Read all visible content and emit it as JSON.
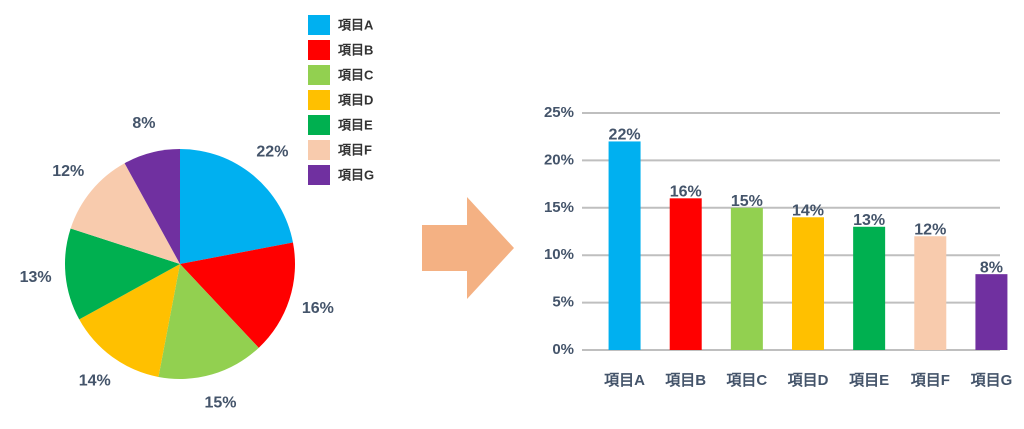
{
  "chart_data": [
    {
      "type": "pie",
      "categories": [
        "項目A",
        "項目B",
        "項目C",
        "項目D",
        "項目E",
        "項目F",
        "項目G"
      ],
      "values": [
        22,
        16,
        15,
        14,
        13,
        12,
        8
      ],
      "value_labels": [
        "22%",
        "16%",
        "15%",
        "14%",
        "13%",
        "12%",
        "8%"
      ],
      "colors": [
        "#00b0f0",
        "#ff0000",
        "#92d050",
        "#ffc000",
        "#00b050",
        "#f8cbad",
        "#7030a0"
      ],
      "legend": "top-right"
    },
    {
      "type": "bar",
      "categories": [
        "項目A",
        "項目B",
        "項目C",
        "項目D",
        "項目E",
        "項目F",
        "項目G"
      ],
      "values": [
        22,
        16,
        15,
        14,
        13,
        12,
        8
      ],
      "value_labels": [
        "22%",
        "16%",
        "15%",
        "14%",
        "13%",
        "12%",
        "8%"
      ],
      "colors": [
        "#00b0f0",
        "#ff0000",
        "#92d050",
        "#ffc000",
        "#00b050",
        "#f8cbad",
        "#7030a0"
      ],
      "ylim": [
        0,
        25
      ],
      "yticks": [
        {
          "value": 0,
          "label": "0%"
        },
        {
          "value": 5,
          "label": "5%"
        },
        {
          "value": 10,
          "label": "10%"
        },
        {
          "value": 15,
          "label": "15%"
        },
        {
          "value": 20,
          "label": "20%"
        },
        {
          "value": 25,
          "label": "25%"
        }
      ],
      "grid": true
    }
  ]
}
